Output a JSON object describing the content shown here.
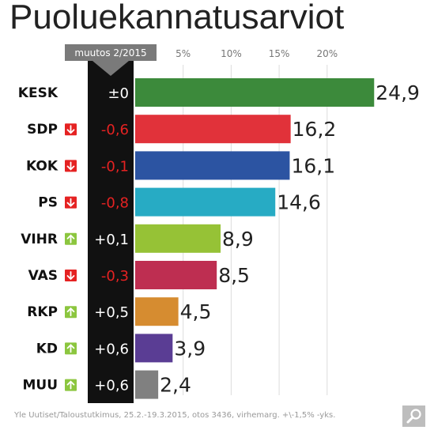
{
  "chart_data": {
    "type": "bar",
    "orientation": "horizontal",
    "title": "Puoluekannatusarviot",
    "change_header": "muutos 2/2015",
    "xlim": [
      0,
      25
    ],
    "ticks": [
      5,
      10,
      15,
      20
    ],
    "tick_labels": [
      "5%",
      "10%",
      "15%",
      "20%"
    ],
    "categories": [
      "KESK",
      "SDP",
      "KOK",
      "PS",
      "VIHR",
      "VAS",
      "RKP",
      "KD",
      "MUU"
    ],
    "values": [
      24.9,
      16.2,
      16.1,
      14.6,
      8.9,
      8.5,
      4.5,
      3.9,
      2.4
    ],
    "value_labels": [
      "24,9",
      "16,2",
      "16,1",
      "14,6",
      "8,9",
      "8,5",
      "4,5",
      "3,9",
      "2,4"
    ],
    "changes": [
      "±0",
      "-0,6",
      "-0,1",
      "-0,8",
      "+0,1",
      "-0,3",
      "+0,5",
      "+0,6",
      "+0,6"
    ],
    "trend": [
      "none",
      "down",
      "down",
      "down",
      "up",
      "down",
      "up",
      "up",
      "up"
    ],
    "colors": [
      "#3c8a3b",
      "#e1323a",
      "#2c54a2",
      "#27abc4",
      "#96c236",
      "#be2e51",
      "#d68c30",
      "#5a3d94",
      "#808080"
    ],
    "source": "Yle Uutiset/Taloustutkimus, 25.2.-19.3.2015, otos 3436, virhemarg. +\\-1,5% -yks."
  },
  "theme": {
    "up_color": "#8cc63f",
    "down_color": "#e52222",
    "change_band_color": "#111111",
    "header_tab_color": "#7a7a7a",
    "gridline_color": "#dcdcdc"
  },
  "icons": {
    "up": "arrow-up-icon",
    "down": "arrow-down-icon",
    "zoom": "search-icon"
  }
}
